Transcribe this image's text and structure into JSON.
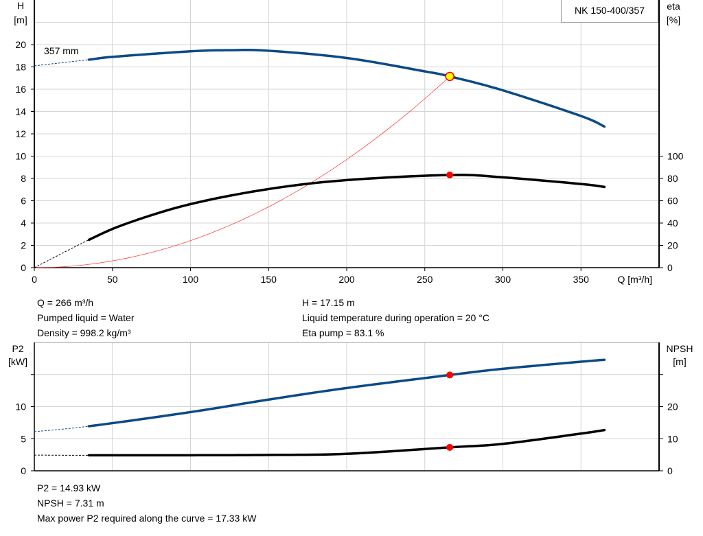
{
  "model_label": "NK 150-400/357",
  "colors": {
    "head": "#0b4a86",
    "efficiency": "#000000",
    "system": "#ff4040",
    "p2": "#0b4a86",
    "npsh": "#000000",
    "duty_point": "#ff0000",
    "duty_point_head_fill": "#ffff00",
    "grid": "#d4d4d4"
  },
  "chart_data": [
    {
      "type": "line",
      "xlabel": "Q [m³/h]",
      "ylabel_left": [
        "H",
        "[m]"
      ],
      "ylabel_right": [
        "eta",
        "[%]"
      ],
      "xlim": [
        0,
        400
      ],
      "ylim_left": [
        0,
        24
      ],
      "ylim_right_scale": "eta = 10 × H units",
      "x_ticks": [
        0,
        50,
        100,
        150,
        200,
        250,
        300,
        350
      ],
      "y_ticks_left": [
        0,
        2,
        4,
        6,
        8,
        10,
        12,
        14,
        16,
        18,
        20
      ],
      "y_ticks_right": [
        0,
        20,
        40,
        60,
        80,
        100
      ],
      "grid": true,
      "curve_label": "357 mm",
      "series": [
        {
          "key": "head",
          "axis": "left",
          "extrapolated_to": 35,
          "x": [
            0,
            35,
            50,
            100,
            125,
            150,
            200,
            250,
            266,
            300,
            350,
            365
          ],
          "y": [
            18.1,
            18.65,
            18.9,
            19.4,
            19.5,
            19.45,
            18.8,
            17.6,
            17.15,
            15.9,
            13.6,
            12.65
          ]
        },
        {
          "key": "efficiency",
          "axis": "right",
          "extrapolated_to": 35,
          "x": [
            0,
            35,
            60,
            100,
            150,
            200,
            266,
            300,
            350,
            365
          ],
          "y": [
            0,
            25,
            40,
            57,
            70.5,
            78.5,
            83.1,
            81,
            75,
            72.4
          ]
        },
        {
          "key": "system",
          "axis": "left",
          "type": "parabola_through_origin",
          "x": [
            0,
            50,
            100,
            150,
            200,
            250,
            266
          ],
          "y": [
            0,
            0.6,
            2.42,
            5.45,
            9.69,
            15.15,
            17.15
          ]
        }
      ],
      "duty_point": {
        "q": 266,
        "h": 17.15,
        "eta": 83.1
      }
    },
    {
      "type": "line",
      "ylabel_left": [
        "P2",
        "[kW]"
      ],
      "ylabel_right": [
        "NPSH",
        "[m]"
      ],
      "xlim": [
        0,
        400
      ],
      "ylim_left": [
        0,
        20
      ],
      "ylim_right": [
        0,
        40
      ],
      "y_ticks_left": [
        0,
        5,
        10,
        15
      ],
      "y_tick_labels_left": [
        "0",
        "5",
        "10",
        ""
      ],
      "y_ticks_right": [
        0,
        10,
        20,
        30
      ],
      "y_tick_labels_right": [
        "0",
        "10",
        "20",
        ""
      ],
      "grid": true,
      "series": [
        {
          "key": "p2",
          "axis": "left",
          "extrapolated_to": 35,
          "x": [
            0,
            35,
            100,
            150,
            200,
            266,
            300,
            350,
            365
          ],
          "y": [
            6.1,
            6.95,
            9.15,
            11.1,
            12.9,
            14.93,
            15.9,
            17.0,
            17.3
          ]
        },
        {
          "key": "npsh",
          "axis": "right",
          "extrapolated_to": 35,
          "x": [
            0,
            35,
            100,
            150,
            200,
            266,
            300,
            350,
            365
          ],
          "y": [
            4.9,
            4.83,
            4.85,
            4.95,
            5.3,
            7.31,
            8.4,
            11.6,
            12.7
          ]
        }
      ],
      "duty_point": {
        "q": 266,
        "p2": 14.93,
        "npsh": 7.31
      }
    }
  ],
  "info_top": {
    "q": "Q = 266 m³/h",
    "liquid": "Pumped liquid = Water",
    "density": "Density = 998.2 kg/m³",
    "h": "H = 17.15 m",
    "temp": "Liquid temperature during operation = 20 °C",
    "eta": "Eta pump = 83.1 %"
  },
  "info_bottom": {
    "p2": "P2 = 14.93 kW",
    "npsh": "NPSH = 7.31 m",
    "max_p2": "Max power P2 required along the curve = 17.33 kW"
  }
}
